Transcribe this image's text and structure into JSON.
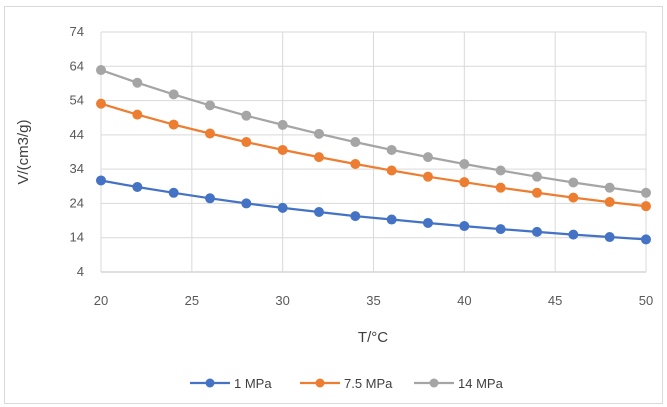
{
  "chart_data": {
    "type": "line",
    "title": "",
    "xlabel": "T/°C",
    "ylabel": "V/(cm3/g)",
    "xlim": [
      20,
      50
    ],
    "ylim": [
      4,
      74
    ],
    "xticks": [
      20,
      25,
      30,
      35,
      40,
      45,
      50
    ],
    "yticks": [
      4,
      14,
      24,
      34,
      44,
      54,
      64,
      74
    ],
    "grid": true,
    "legend_position": "bottom",
    "x": [
      20,
      22,
      24,
      26,
      28,
      30,
      32,
      34,
      36,
      38,
      40,
      42,
      44,
      46,
      48,
      50
    ],
    "series": [
      {
        "name": "1 MPa",
        "color": "#4472c4",
        "values": [
          30.7,
          28.8,
          27.1,
          25.5,
          24.0,
          22.7,
          21.5,
          20.3,
          19.3,
          18.3,
          17.4,
          16.5,
          15.7,
          14.9,
          14.2,
          13.5
        ]
      },
      {
        "name": "7.5 MPa",
        "color": "#ed7d31",
        "values": [
          53.1,
          49.9,
          47.0,
          44.4,
          41.9,
          39.6,
          37.5,
          35.5,
          33.6,
          31.8,
          30.2,
          28.6,
          27.1,
          25.7,
          24.4,
          23.2
        ]
      },
      {
        "name": "14 MPa",
        "color": "#a5a5a5",
        "values": [
          62.9,
          59.2,
          55.8,
          52.6,
          49.6,
          46.9,
          44.3,
          41.9,
          39.6,
          37.5,
          35.5,
          33.6,
          31.8,
          30.1,
          28.6,
          27.1
        ]
      }
    ]
  }
}
